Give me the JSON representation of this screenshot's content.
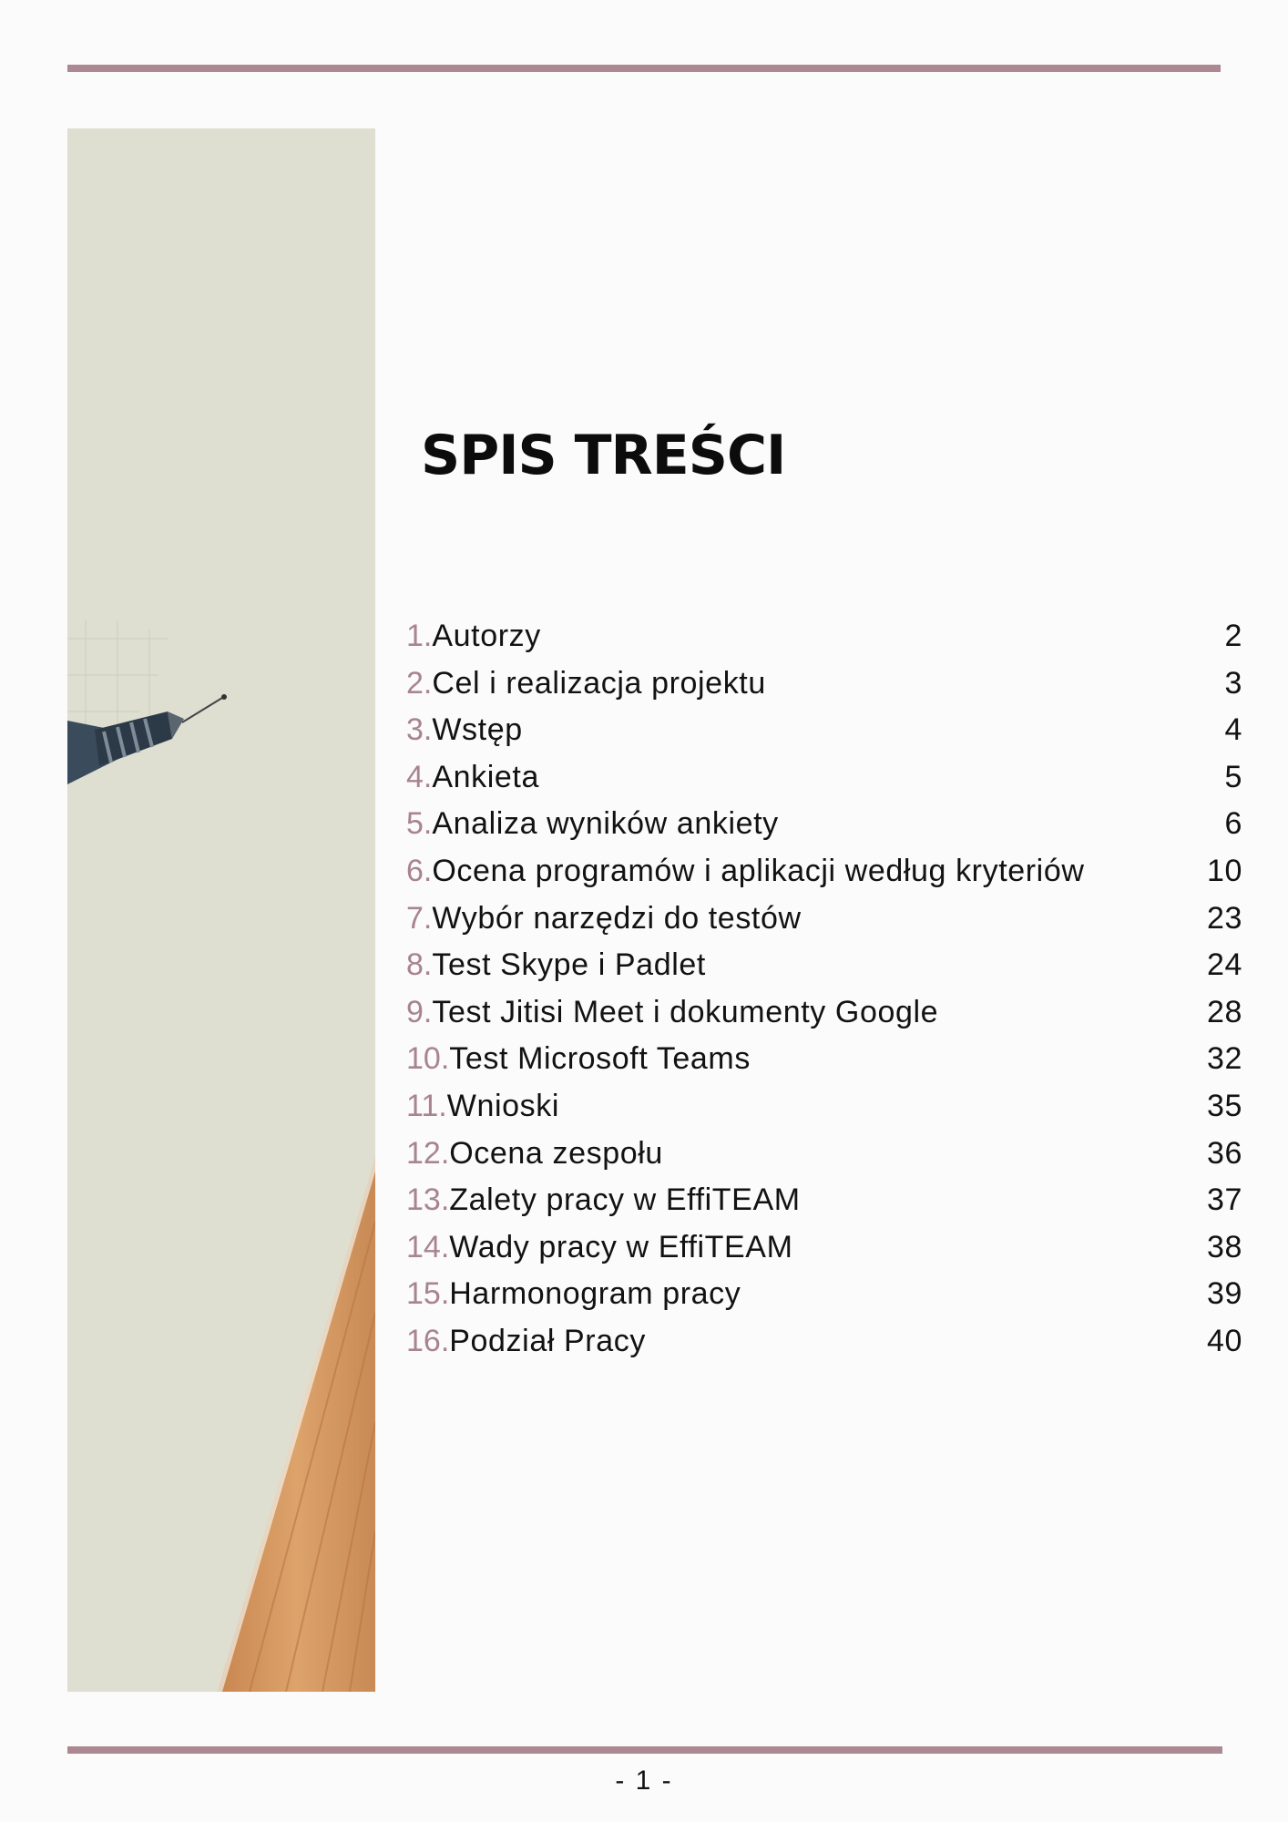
{
  "title": "SPIS TREŚCI",
  "toc": [
    {
      "number": "1.",
      "label": "Autorzy",
      "page": "2"
    },
    {
      "number": "2.",
      "label": "Cel i realizacja projektu",
      "page": "3"
    },
    {
      "number": "3.",
      "label": "Wstęp",
      "page": "4"
    },
    {
      "number": "4.",
      "label": "Ankieta",
      "page": "5"
    },
    {
      "number": "5.",
      "label": "Analiza wyników ankiety",
      "page": "6"
    },
    {
      "number": "6.",
      "label": "Ocena programów i aplikacji według kryteriów",
      "page": "10"
    },
    {
      "number": "7.",
      "label": "Wybór narzędzi do testów",
      "page": "23"
    },
    {
      "number": "8.",
      "label": "Test Skype i Padlet",
      "page": "24"
    },
    {
      "number": "9.",
      "label": "Test Jitisi Meet i dokumenty Google",
      "page": "28"
    },
    {
      "number": "10.",
      "label": "Test Microsoft Teams",
      "page": "32"
    },
    {
      "number": "11.",
      "label": "Wnioski",
      "page": "35"
    },
    {
      "number": "12.",
      "label": "Ocena zespołu",
      "page": "36"
    },
    {
      "number": "13.",
      "label": "Zalety pracy w EffiTEAM",
      "page": "37"
    },
    {
      "number": "14.",
      "label": "Wady pracy w EffiTEAM",
      "page": "38"
    },
    {
      "number": "15.",
      "label": "Harmonogram pracy",
      "page": "39"
    },
    {
      "number": "16.",
      "label": "Podział Pracy",
      "page": "40"
    }
  ],
  "footer": {
    "page_number": "- 1 -"
  },
  "colors": {
    "accent": "#ab8892",
    "number": "#a8848e",
    "photo_background": "#dedfd1",
    "wood": "#d49a62"
  },
  "image": {
    "subject": "pen-on-grid-paper-photo"
  }
}
